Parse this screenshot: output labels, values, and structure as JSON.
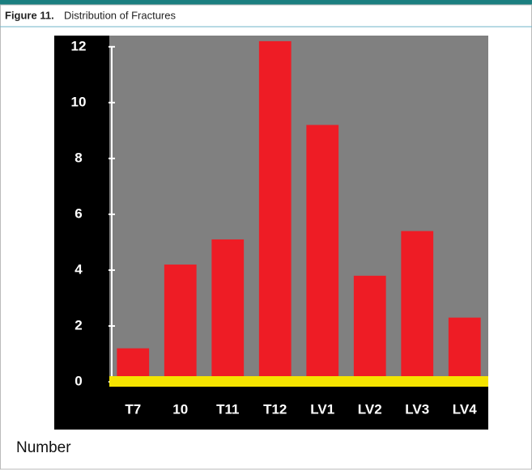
{
  "chart_data": {
    "type": "bar",
    "figure_label": "Figure 11.",
    "title": "Distribution of Fractures",
    "y_label": "Number",
    "categories": [
      "T7",
      "10",
      "T11",
      "T12",
      "LV1",
      "LV2",
      "LV3",
      "LV4"
    ],
    "values": [
      1.2,
      4.2,
      5.1,
      12.2,
      9.2,
      3.8,
      5.4,
      2.3
    ],
    "color": "#ee1c25",
    "ylim": [
      0,
      12.4
    ],
    "yticks": [
      0,
      2,
      4,
      6,
      8,
      10,
      12
    ]
  }
}
